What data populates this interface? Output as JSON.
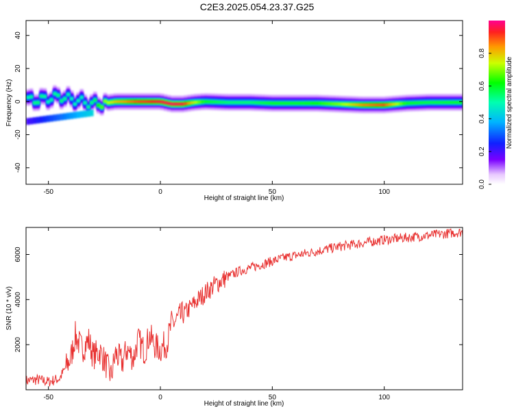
{
  "title": "C2E3.2025.054.23.37.G25",
  "chart_data": [
    {
      "type": "heatmap",
      "xlabel": "Height of straight line (km)",
      "ylabel": "Frequency (Hz)",
      "xlim": [
        -60,
        135
      ],
      "ylim": [
        -50,
        49
      ],
      "xticks": [
        -50,
        0,
        50,
        100
      ],
      "yticks": [
        -40,
        -20,
        0,
        20,
        40
      ],
      "colorbar": {
        "label": "Normalized spectral amplitude",
        "range": [
          0,
          1
        ],
        "ticks": [
          "0.0",
          "0.2",
          "0.4",
          "0.6",
          "0.8"
        ]
      },
      "ridge": [
        {
          "x": -60,
          "y": 1.0,
          "amp": 0.5
        },
        {
          "x": -55,
          "y": 1.0,
          "amp": 0.55
        },
        {
          "x": -50,
          "y": 2.0,
          "amp": 0.5
        },
        {
          "x": -45,
          "y": 3.0,
          "amp": 0.55
        },
        {
          "x": -40,
          "y": 1.5,
          "amp": 0.5
        },
        {
          "x": -35,
          "y": 0.0,
          "amp": 0.5
        },
        {
          "x": -30,
          "y": -1.5,
          "amp": 0.55
        },
        {
          "x": -25,
          "y": -1.0,
          "amp": 0.7
        },
        {
          "x": -20,
          "y": 0.0,
          "amp": 0.8
        },
        {
          "x": -15,
          "y": 0.0,
          "amp": 0.85
        },
        {
          "x": -10,
          "y": 0.0,
          "amp": 0.9
        },
        {
          "x": -5,
          "y": 0.0,
          "amp": 0.92
        },
        {
          "x": 0,
          "y": 0.0,
          "amp": 0.95
        },
        {
          "x": 5,
          "y": -1.5,
          "amp": 0.97
        },
        {
          "x": 10,
          "y": -1.5,
          "amp": 0.95
        },
        {
          "x": 15,
          "y": -0.5,
          "amp": 0.75
        },
        {
          "x": 20,
          "y": 0.0,
          "amp": 0.6
        },
        {
          "x": 30,
          "y": -0.5,
          "amp": 0.55
        },
        {
          "x": 40,
          "y": -0.5,
          "amp": 0.55
        },
        {
          "x": 50,
          "y": -1.0,
          "amp": 0.6
        },
        {
          "x": 60,
          "y": -1.0,
          "amp": 0.6
        },
        {
          "x": 70,
          "y": -1.0,
          "amp": 0.62
        },
        {
          "x": 80,
          "y": -1.5,
          "amp": 0.7
        },
        {
          "x": 90,
          "y": -2.0,
          "amp": 0.85
        },
        {
          "x": 100,
          "y": -2.0,
          "amp": 0.9
        },
        {
          "x": 110,
          "y": -1.0,
          "amp": 0.6
        },
        {
          "x": 120,
          "y": -0.5,
          "amp": 0.58
        },
        {
          "x": 135,
          "y": -0.5,
          "amp": 0.6
        }
      ]
    },
    {
      "type": "line",
      "xlabel": "Height of straight line (km)",
      "ylabel": "SNR (10 * v/v)",
      "xlim": [
        -60,
        135
      ],
      "ylim": [
        0,
        7200
      ],
      "xticks": [
        -50,
        0,
        50,
        100
      ],
      "yticks": [
        2000,
        4000,
        6000
      ],
      "series": [
        {
          "color": "#e8302f",
          "x": [
            -60,
            -55,
            -50,
            -45,
            -40,
            -38,
            -35,
            -32,
            -30,
            -27,
            -25,
            -22,
            -20,
            -17,
            -15,
            -12,
            -10,
            -7,
            -5,
            -2,
            0,
            3,
            5,
            10,
            15,
            20,
            25,
            30,
            35,
            40,
            45,
            50,
            55,
            60,
            70,
            80,
            90,
            100,
            110,
            120,
            130,
            135
          ],
          "y": [
            400,
            450,
            350,
            500,
            1400,
            2400,
            1800,
            2200,
            1500,
            1700,
            1300,
            600,
            1600,
            1200,
            1800,
            1400,
            2200,
            1700,
            2400,
            1900,
            1800,
            2100,
            2900,
            3300,
            3800,
            4300,
            4700,
            5000,
            5250,
            5400,
            5550,
            5700,
            5850,
            5950,
            6150,
            6350,
            6500,
            6650,
            6750,
            6850,
            6950,
            7000
          ]
        }
      ]
    }
  ]
}
